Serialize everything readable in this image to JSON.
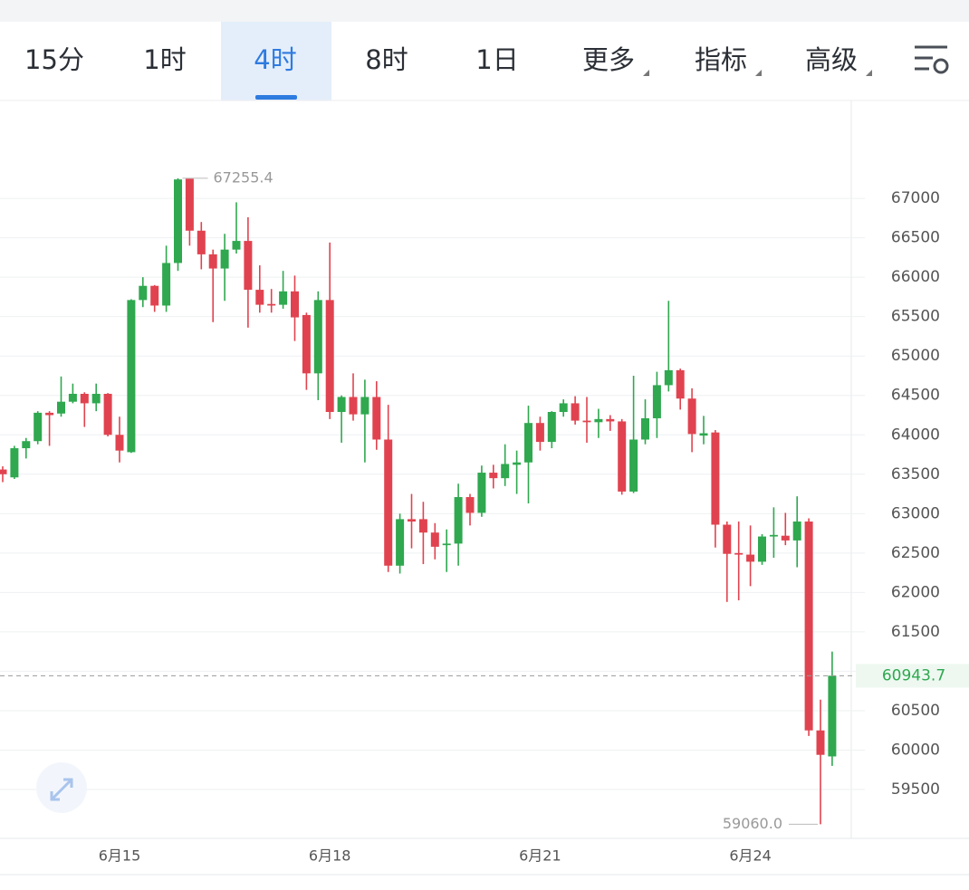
{
  "tabs": [
    "15分",
    "1时",
    "4时",
    "8时",
    "1日",
    "更多",
    "指标",
    "高级"
  ],
  "active_tab": 2,
  "chart_data": {
    "type": "candlestick",
    "categories": [
      null,
      null,
      null,
      null,
      null,
      null,
      null,
      null,
      null,
      null,
      "6月15",
      null,
      null,
      null,
      null,
      null,
      null,
      null,
      null,
      null,
      null,
      null,
      null,
      null,
      null,
      null,
      null,
      null,
      "6月18",
      null,
      null,
      null,
      null,
      null,
      null,
      null,
      null,
      null,
      null,
      null,
      null,
      null,
      null,
      null,
      null,
      null,
      "6月21",
      null,
      null,
      null,
      null,
      null,
      null,
      null,
      null,
      null,
      null,
      null,
      null,
      null,
      null,
      null,
      null,
      null,
      "6月24",
      null,
      null,
      null,
      null,
      null,
      null,
      null
    ],
    "open": [
      63560,
      63460,
      63830,
      63920,
      64280,
      64270,
      64420,
      64520,
      64400,
      64520,
      64000,
      63780,
      65710,
      65890,
      65640,
      66180,
      67250,
      66590,
      66290,
      66110,
      66350,
      66460,
      65840,
      65660,
      65650,
      65820,
      65520,
      64780,
      65710,
      64290,
      64480,
      64260,
      64480,
      63940,
      62340,
      62930,
      62930,
      62760,
      62600,
      62620,
      63210,
      63010,
      63520,
      63450,
      63620,
      63650,
      64150,
      63910,
      64290,
      64400,
      64180,
      64160,
      64200,
      64170,
      63280,
      63940,
      64210,
      64630,
      64820,
      64460,
      63990,
      64030,
      62860,
      62500,
      62480,
      62390,
      62710,
      62720,
      62660,
      62900,
      60250,
      59920
    ],
    "high": [
      63600,
      63860,
      63960,
      64300,
      64300,
      64740,
      64650,
      64540,
      64650,
      64530,
      64230,
      65720,
      66000,
      65900,
      66400,
      67255.4,
      67250,
      66700,
      66350,
      66550,
      66950,
      66760,
      66150,
      65850,
      66080,
      66020,
      65550,
      65820,
      66440,
      64500,
      64780,
      64700,
      64680,
      64380,
      63000,
      63250,
      63150,
      62880,
      62800,
      63380,
      63250,
      63610,
      63620,
      63880,
      63800,
      64370,
      64230,
      64300,
      64450,
      64490,
      64480,
      64330,
      64250,
      64200,
      64750,
      64450,
      64800,
      65700,
      64840,
      64590,
      64240,
      64060,
      62900,
      62900,
      62850,
      62740,
      63080,
      63010,
      63220,
      62940,
      60640,
      61250
    ],
    "low": [
      63400,
      63440,
      63700,
      63880,
      63860,
      64230,
      64400,
      64100,
      64300,
      63980,
      63650,
      63770,
      65620,
      65560,
      65560,
      66080,
      66400,
      66100,
      65430,
      65700,
      66300,
      65360,
      65550,
      65550,
      65600,
      65190,
      64570,
      64440,
      64200,
      63900,
      64180,
      63650,
      63810,
      62260,
      62240,
      62560,
      62360,
      62420,
      62260,
      62340,
      62850,
      62960,
      63320,
      63350,
      63250,
      63130,
      63800,
      63830,
      64230,
      64130,
      63900,
      63960,
      64050,
      63240,
      63260,
      63880,
      63960,
      64550,
      64320,
      63780,
      63880,
      62570,
      61880,
      61900,
      62080,
      62350,
      62440,
      62600,
      62320,
      60180,
      59060,
      59800
    ],
    "close": [
      63500,
      63830,
      63920,
      64280,
      64250,
      64420,
      64520,
      64400,
      64520,
      64000,
      63800,
      65710,
      65890,
      65640,
      66180,
      67240,
      66590,
      66290,
      66110,
      66350,
      66460,
      65840,
      65650,
      65640,
      65820,
      65490,
      64780,
      65710,
      64290,
      64480,
      64260,
      64480,
      63940,
      62340,
      62930,
      62900,
      62760,
      62580,
      62620,
      63210,
      63010,
      63520,
      63450,
      63630,
      63650,
      64150,
      63910,
      64290,
      64400,
      64180,
      64160,
      64200,
      64170,
      63280,
      63940,
      64210,
      64630,
      64820,
      64460,
      64010,
      64020,
      62860,
      62490,
      62480,
      62390,
      62710,
      62730,
      62660,
      62900,
      60250,
      59940,
      60943.7
    ],
    "up_color": "#2fa84f",
    "down_color": "#e0434f",
    "ylim": [
      58880,
      68230
    ],
    "yticks": [
      59500,
      60000,
      60500,
      61000,
      61500,
      62000,
      62500,
      63000,
      63500,
      64000,
      64500,
      65000,
      65500,
      66000,
      66500,
      67000
    ],
    "grid": true,
    "high_label": 67255.4,
    "low_label": {
      "value": 59060,
      "label": "59060.0"
    },
    "last_price": 60943.7
  }
}
